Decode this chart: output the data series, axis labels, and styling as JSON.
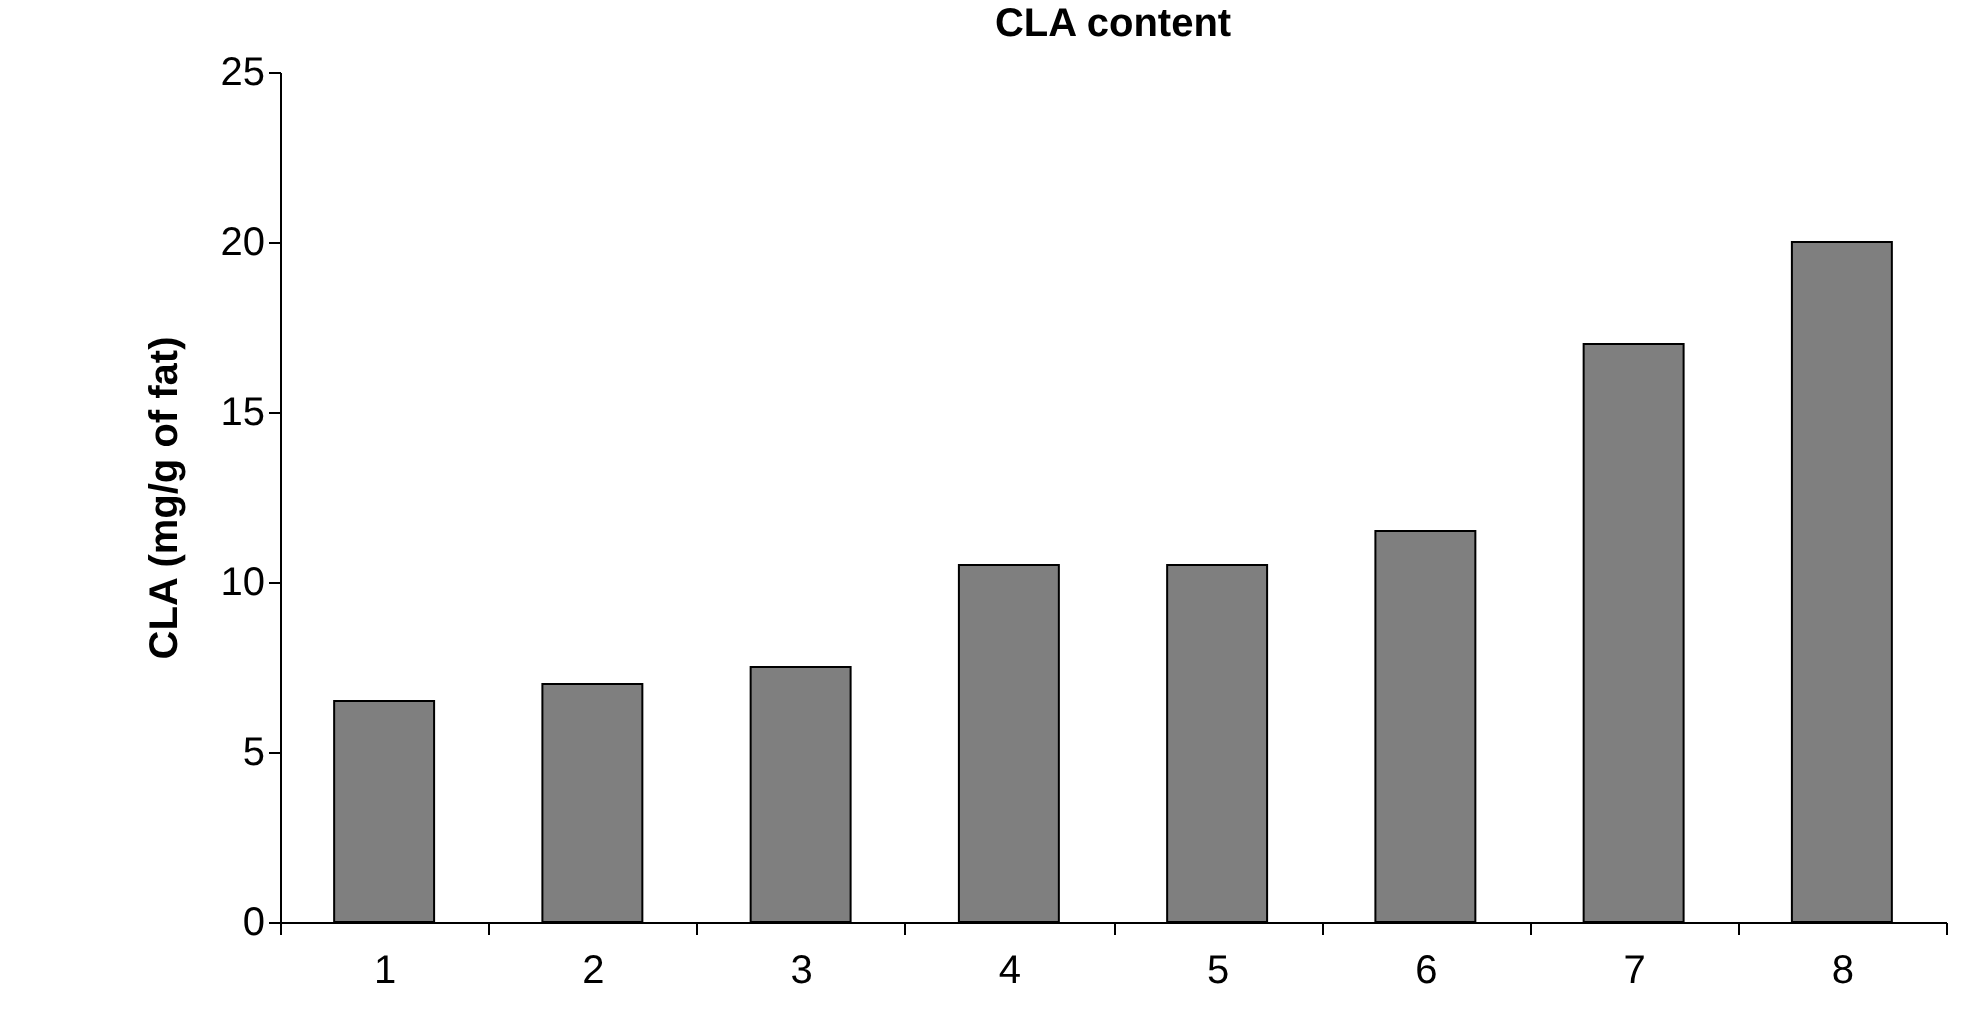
{
  "chart_data": {
    "type": "bar",
    "title": "CLA content",
    "ylabel": "CLA (mg/g of fat)",
    "categories": [
      "1",
      "2",
      "3",
      "4",
      "5",
      "6",
      "7",
      "8"
    ],
    "values": [
      6.5,
      7,
      7.5,
      10.5,
      10.5,
      11.5,
      17,
      20
    ],
    "color": "#7f7f7f",
    "ylim": [
      0,
      25
    ],
    "yticks": [
      0,
      5,
      10,
      15,
      20,
      25
    ]
  }
}
